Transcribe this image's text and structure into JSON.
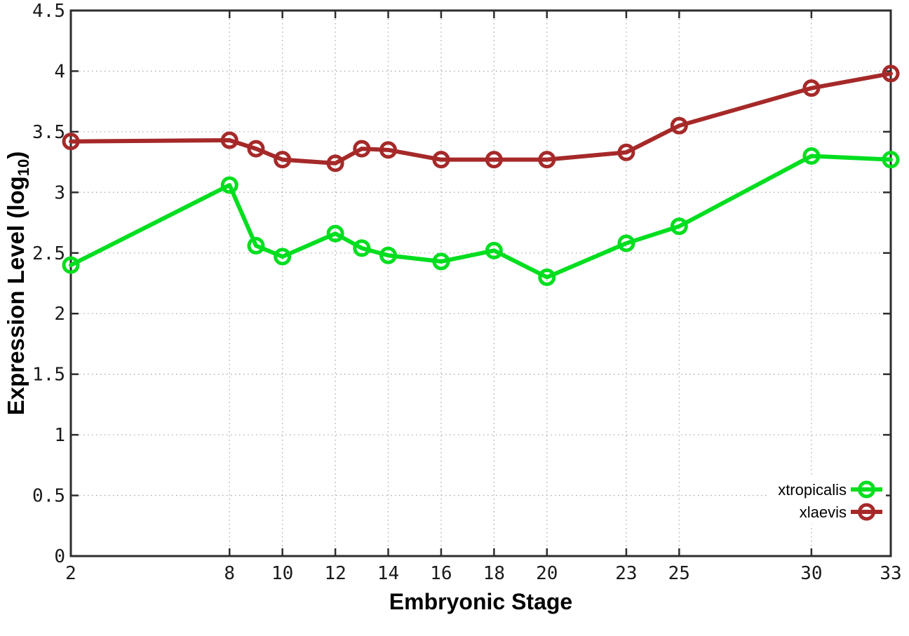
{
  "chart_data": {
    "type": "line",
    "title": "",
    "xlabel": "Embryonic Stage",
    "ylabel": "Expression Level (log10)",
    "ylabel_parts": {
      "main": "Expression Level (log",
      "sub": "10",
      "end": ")"
    },
    "x": [
      2,
      8,
      9,
      10,
      12,
      13,
      14,
      16,
      18,
      20,
      23,
      25,
      30,
      33
    ],
    "series": [
      {
        "name": "xtropicalis",
        "color": "#00DE1F",
        "values": [
          2.4,
          3.06,
          2.56,
          2.47,
          2.66,
          2.54,
          2.48,
          2.43,
          2.52,
          2.3,
          2.58,
          2.72,
          3.3,
          3.27
        ]
      },
      {
        "name": "xlaevis",
        "color": "#A62929",
        "values": [
          3.42,
          3.43,
          3.36,
          3.27,
          3.24,
          3.36,
          3.35,
          3.27,
          3.27,
          3.27,
          3.33,
          3.55,
          3.86,
          3.98
        ]
      }
    ],
    "xlim": [
      2,
      33
    ],
    "ylim": [
      0,
      4.5
    ],
    "xticks": [
      2,
      8,
      10,
      12,
      14,
      16,
      18,
      20,
      23,
      25,
      30,
      33
    ],
    "xtick_labels": [
      "2",
      "8",
      "10",
      "12",
      "14",
      "16",
      "18",
      "20",
      "23",
      "25",
      "30",
      "33"
    ],
    "yticks": [
      0,
      0.5,
      1,
      1.5,
      2,
      2.5,
      3,
      3.5,
      4,
      4.5
    ],
    "ytick_labels": [
      "0",
      "0.5",
      "1",
      "1.5",
      "2",
      "2.5",
      "3",
      "3.5",
      "4",
      "4.5"
    ],
    "grid": true,
    "legend_position": "bottom-right",
    "marker": "open-circle",
    "colors": {
      "grid": "#ABABAB",
      "axis": "#2D2D2D",
      "tick_text": "#1A1A1A",
      "title_text": "#000000",
      "background": "#FFFFFF"
    }
  }
}
